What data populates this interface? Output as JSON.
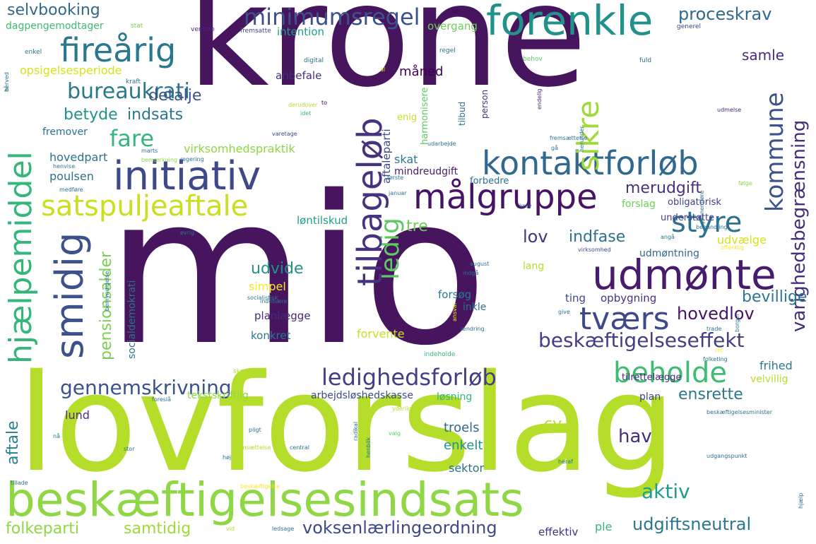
{
  "colors": {
    "palette": "viridis",
    "background": "#ffffff"
  },
  "words": [
    {
      "text": "krone",
      "color": "#46155e"
    },
    {
      "text": "mio",
      "color": "#46155e"
    },
    {
      "text": "lovforslag",
      "color": "#b5de2b"
    },
    {
      "text": "beskæftigelsesindsats",
      "color": "#8fd744"
    },
    {
      "text": "forenkle",
      "color": "#21918c"
    },
    {
      "text": "fireårig",
      "color": "#2a788e"
    },
    {
      "text": "minimumsregel",
      "color": "#3b528b"
    },
    {
      "text": "initiativ",
      "color": "#3e4989"
    },
    {
      "text": "målgruppe",
      "color": "#471365"
    },
    {
      "text": "kontaktforløb",
      "color": "#31688e"
    },
    {
      "text": "udmønte",
      "color": "#481b6d"
    },
    {
      "text": "satspuljeaftale",
      "color": "#c8e020"
    },
    {
      "text": "hjælpemiddel",
      "color": "#35b779"
    },
    {
      "text": "smidig",
      "color": "#3b528b"
    },
    {
      "text": "tilbageløb",
      "color": "#46327e"
    },
    {
      "text": "tværs",
      "color": "#3e4989"
    },
    {
      "text": "styre",
      "color": "#2c728e"
    },
    {
      "text": "sikre",
      "color": "#a0da39"
    },
    {
      "text": "kommune",
      "color": "#3b528b"
    },
    {
      "text": "varighedsbegrænsning",
      "color": "#472d7b"
    },
    {
      "text": "ledig",
      "color": "#5ec962"
    },
    {
      "text": "ledighedsforløb",
      "color": "#433e85"
    },
    {
      "text": "beskæftigelseseffekt",
      "color": "#433e85"
    },
    {
      "text": "gennemskrivning",
      "color": "#3b528b"
    },
    {
      "text": "beholde",
      "color": "#3fbc73"
    },
    {
      "text": "bureaukrati",
      "color": "#2a788e"
    },
    {
      "text": "fare",
      "color": "#35b779"
    },
    {
      "text": "betyde",
      "color": "#21918c"
    },
    {
      "text": "indsats",
      "color": "#2a788e"
    },
    {
      "text": "proceskrav",
      "color": "#31688e"
    },
    {
      "text": "selvbooking",
      "color": "#31688e"
    },
    {
      "text": "detalje",
      "color": "#3b528b"
    },
    {
      "text": "samle",
      "color": "#472d7b"
    },
    {
      "text": "aktiv",
      "color": "#1f9e89"
    },
    {
      "text": "voksenlærlingeordning",
      "color": "#3e4989"
    },
    {
      "text": "udgiftsneutral",
      "color": "#2a788e"
    },
    {
      "text": "folkeparti",
      "color": "#8fd744"
    },
    {
      "text": "samtidig",
      "color": "#a0da39"
    },
    {
      "text": "aftale",
      "color": "#26828e"
    },
    {
      "text": "lund",
      "color": "#46327e"
    },
    {
      "text": "pensionsalder",
      "color": "#7ad151"
    },
    {
      "text": "udvide",
      "color": "#21918c"
    },
    {
      "text": "simpel",
      "color": "#fde725"
    },
    {
      "text": "hovedlov",
      "color": "#471365"
    },
    {
      "text": "bevillige",
      "color": "#2a788e"
    },
    {
      "text": "indfase",
      "color": "#2c728e"
    },
    {
      "text": "merudgift",
      "color": "#46327e"
    },
    {
      "text": "lov",
      "color": "#46327e"
    },
    {
      "text": "tre",
      "color": "#6ece58"
    },
    {
      "text": "hav",
      "color": "#472d7b"
    },
    {
      "text": "cv",
      "color": "#b5de2b"
    },
    {
      "text": "ensrette",
      "color": "#2a788e"
    },
    {
      "text": "troels",
      "color": "#31688e"
    },
    {
      "text": "enkelt",
      "color": "#21918c"
    },
    {
      "text": "sektor",
      "color": "#2c728e"
    },
    {
      "text": "effektiv",
      "color": "#46327e"
    },
    {
      "text": "ple",
      "color": "#35b779"
    },
    {
      "text": "frihed",
      "color": "#2a788e"
    },
    {
      "text": "velvillig",
      "color": "#b5de2b"
    },
    {
      "text": "opsigelsesperiode",
      "color": "#d8e219"
    },
    {
      "text": "dagpengemodtager",
      "color": "#3fbc73"
    },
    {
      "text": "intention",
      "color": "#1f9e89"
    },
    {
      "text": "overgang",
      "color": "#6ece58"
    },
    {
      "text": "måned",
      "color": "#440154"
    },
    {
      "text": "anbefale",
      "color": "#472d7b"
    },
    {
      "text": "hovedpart",
      "color": "#2c728e"
    },
    {
      "text": "virksomhedspraktik",
      "color": "#8fd744"
    },
    {
      "text": "poulsen",
      "color": "#2c728e"
    },
    {
      "text": "fremover",
      "color": "#2c728e"
    },
    {
      "text": "skat",
      "color": "#2a788e"
    },
    {
      "text": "mindreudgift",
      "color": "#481b6d"
    },
    {
      "text": "forbedre",
      "color": "#2c728e"
    },
    {
      "text": "obligatorisk",
      "color": "#433e85"
    },
    {
      "text": "understøtte",
      "color": "#433e85"
    },
    {
      "text": "løntilskud",
      "color": "#1f9e89"
    },
    {
      "text": "forslag",
      "color": "#6ece58"
    },
    {
      "text": "udvælge",
      "color": "#d8e219"
    },
    {
      "text": "udmøntning",
      "color": "#31688e"
    },
    {
      "text": "lang",
      "color": "#b5de2b"
    },
    {
      "text": "forsøg",
      "color": "#2a788e"
    },
    {
      "text": "inkle",
      "color": "#2c728e"
    },
    {
      "text": "ting",
      "color": "#3e4989"
    },
    {
      "text": "opbygning",
      "color": "#46327e"
    },
    {
      "text": "planlægge",
      "color": "#482878"
    },
    {
      "text": "konkret",
      "color": "#2a788e"
    },
    {
      "text": "forvente",
      "color": "#c8e020"
    },
    {
      "text": "tilrettelægge",
      "color": "#482878"
    },
    {
      "text": "tekstskriftlig",
      "color": "#8fd744"
    },
    {
      "text": "arbejdsløshedskasse",
      "color": "#3e4989"
    },
    {
      "text": "løsning",
      "color": "#35b779"
    },
    {
      "text": "plan",
      "color": "#3e4989"
    },
    {
      "text": "socialdemokrati",
      "color": "#2c728e"
    },
    {
      "text": "aftaleparti",
      "color": "#2c728e"
    },
    {
      "text": "harmonisere",
      "color": "#3e4989"
    },
    {
      "text": "person",
      "color": "#5ec962"
    },
    {
      "text": "tilbud",
      "color": "#46327e"
    },
    {
      "text": "enig",
      "color": "#2c728e"
    },
    {
      "text": "se",
      "color": "#c8e020"
    },
    {
      "text": "venstre",
      "color": "#440154"
    },
    {
      "text": "stat",
      "color": "#482878"
    },
    {
      "text": "fremsatte",
      "color": "#7ad151"
    },
    {
      "text": "generel",
      "color": "#3e4989"
    },
    {
      "text": "enkel",
      "color": "#3e4989"
    },
    {
      "text": "digital",
      "color": "#2c728e"
    },
    {
      "text": "regel",
      "color": "#2c728e"
    },
    {
      "text": "fuld",
      "color": "#2c728e"
    },
    {
      "text": "behov",
      "color": "#2c728e"
    },
    {
      "text": "al",
      "color": "#5ec962"
    },
    {
      "text": "kraft",
      "color": "#fde725"
    },
    {
      "text": "herved",
      "color": "#2c728e"
    },
    {
      "text": "derudover",
      "color": "#2c728e"
    },
    {
      "text": "to",
      "color": "#b5de2b"
    },
    {
      "text": "idet",
      "color": "#440154"
    },
    {
      "text": "endelig",
      "color": "#35b779"
    },
    {
      "text": "udmelse",
      "color": "#482878"
    },
    {
      "text": "varetage",
      "color": "#482878"
    },
    {
      "text": "udarbejde",
      "color": "#3e4989"
    },
    {
      "text": "fremsættelse",
      "color": "#2c728e"
    },
    {
      "text": "gå",
      "color": "#2c728e"
    },
    {
      "text": "herunder",
      "color": "#2c728e"
    },
    {
      "text": "marts",
      "color": "#2c728e"
    },
    {
      "text": "regering",
      "color": "#2c728e"
    },
    {
      "text": "bemærkning",
      "color": "#2c728e"
    },
    {
      "text": "henvise",
      "color": "#8fd744"
    },
    {
      "text": "første",
      "color": "#2c728e"
    },
    {
      "text": "medføre",
      "color": "#2c728e"
    },
    {
      "text": "januar",
      "color": "#2c728e"
    },
    {
      "text": "følge",
      "color": "#2c728e"
    },
    {
      "text": "krav",
      "color": "#8fd744"
    },
    {
      "text": "øvrig",
      "color": "#2c728e"
    },
    {
      "text": "behandling",
      "color": "#2c728e"
    },
    {
      "text": "gennemføre",
      "color": "#2c728e"
    },
    {
      "text": "angå",
      "color": "#2c728e"
    },
    {
      "text": "virksomhed",
      "color": "#2c728e"
    },
    {
      "text": "offentlig",
      "color": "#3e4989"
    },
    {
      "text": "august",
      "color": "#fde725"
    },
    {
      "text": "indgå",
      "color": "#2c728e"
    },
    {
      "text": "bemyndigelse",
      "color": "#2c728e"
    },
    {
      "text": "socialistisk",
      "color": "#2c728e"
    },
    {
      "text": "indebære",
      "color": "#2c728e"
    },
    {
      "text": "ansvar",
      "color": "#2c728e"
    },
    {
      "text": "give",
      "color": "#fde725"
    },
    {
      "text": "ændring",
      "color": "#fde725"
    },
    {
      "text": "trade",
      "color": "#2c728e"
    },
    {
      "text": "borger",
      "color": "#2c728e"
    },
    {
      "text": "indeholde",
      "color": "#2c728e"
    },
    {
      "text": "ret",
      "color": "#2c728e"
    },
    {
      "text": "folketing",
      "color": "#35b779"
    },
    {
      "text": "skønne",
      "color": "#fde725"
    },
    {
      "text": "foreslå",
      "color": "#2c728e"
    },
    {
      "text": "yderlig",
      "color": "#b5de2b"
    },
    {
      "text": "beskæftigelsesminister",
      "color": "#2c728e"
    },
    {
      "text": "pligt",
      "color": "#b5de2b"
    },
    {
      "text": "henblik",
      "color": "#2c728e"
    },
    {
      "text": "radikal",
      "color": "#2c728e"
    },
    {
      "text": "valg",
      "color": "#2c728e"
    },
    {
      "text": "nå",
      "color": "#2c728e"
    },
    {
      "text": "fremsættelse",
      "color": "#5ec962"
    },
    {
      "text": "stor",
      "color": "#2c728e"
    },
    {
      "text": "central",
      "color": "#b5de2b"
    },
    {
      "text": "høj",
      "color": "#2c728e"
    },
    {
      "text": "heraf",
      "color": "#2c728e"
    },
    {
      "text": "udgangspunkt",
      "color": "#2c728e"
    },
    {
      "text": "hjælp",
      "color": "#2c728e"
    },
    {
      "text": "tillade",
      "color": "#2c728e"
    },
    {
      "text": "beskæftigelse",
      "color": "#2c728e"
    },
    {
      "text": "vid",
      "color": "#2c728e"
    },
    {
      "text": "ledsage",
      "color": "#fde725"
    },
    {
      "text": "båd",
      "color": "#b5de2b"
    },
    {
      "text": "dansk",
      "color": "#2c728e"
    }
  ]
}
